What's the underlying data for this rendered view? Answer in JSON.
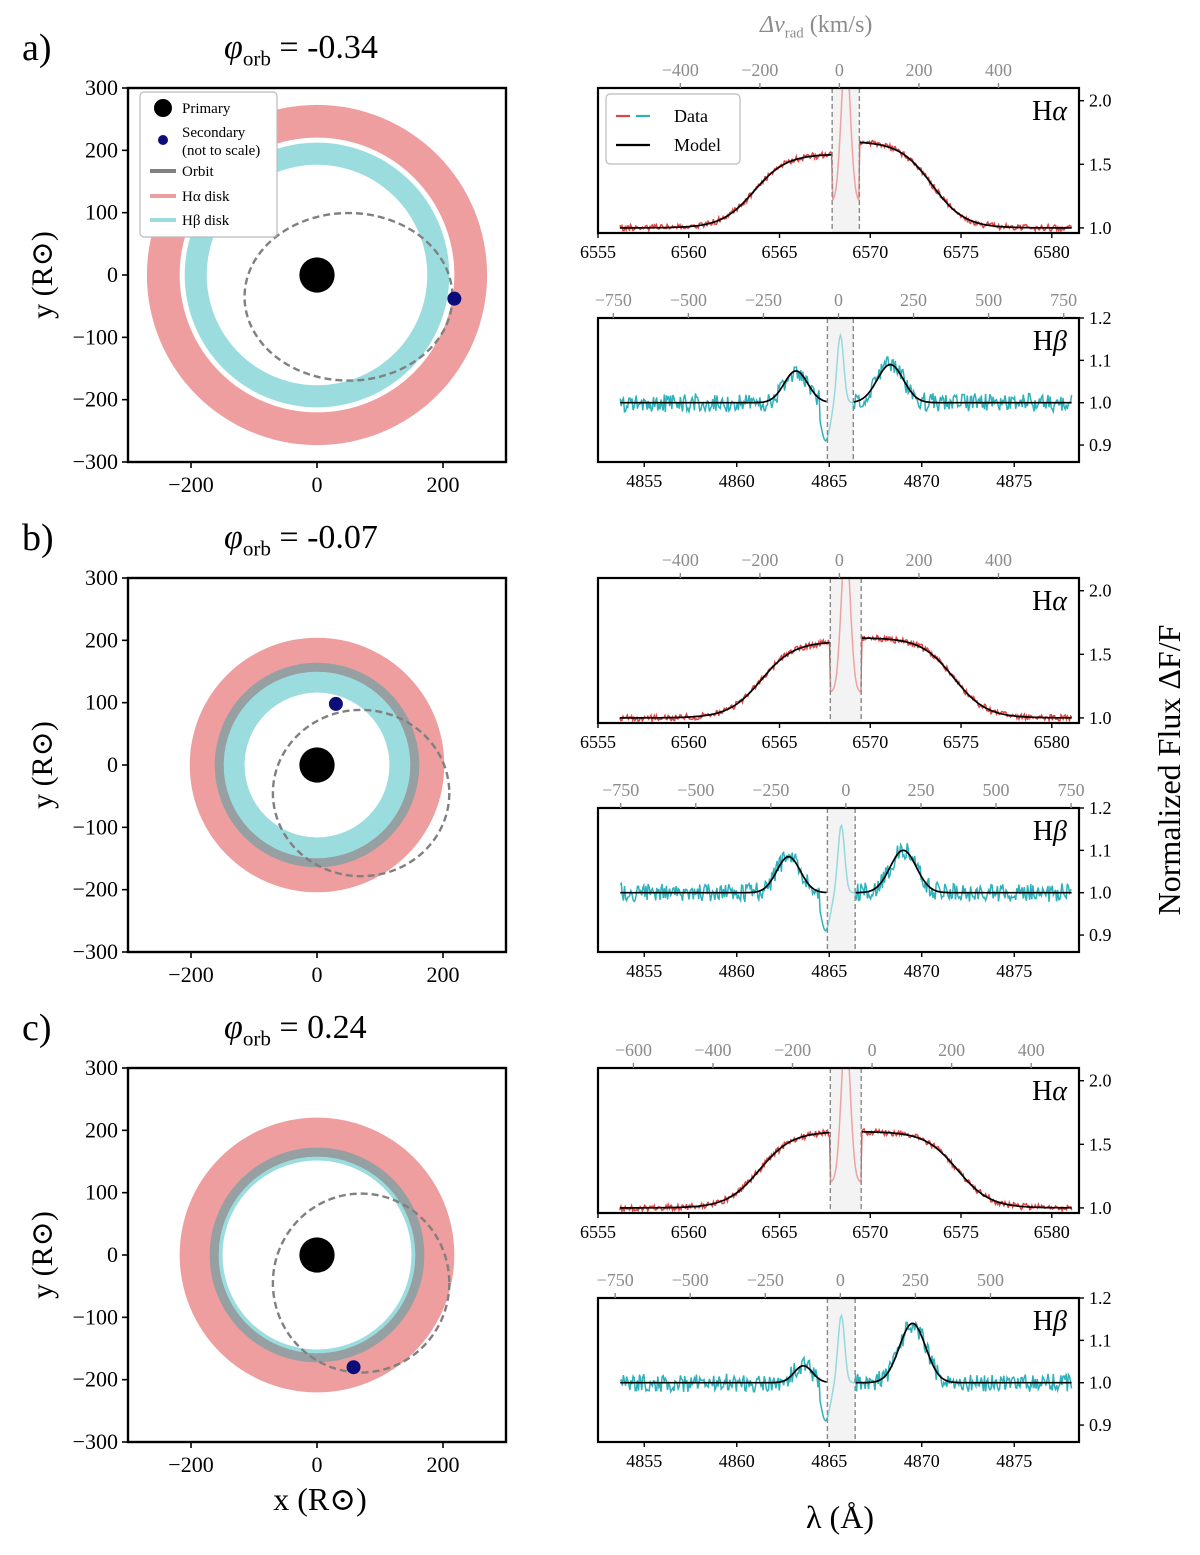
{
  "figure": {
    "colors": {
      "halpha_disk": "#ee9e9f",
      "hbeta_disk": "#9bdcdf",
      "orbit_overlap": "#969fa1",
      "ha_data": "#e04545",
      "hb_data": "#2fb1bb",
      "model": "#000000",
      "primary": "#000000",
      "secondary": "#0d0d7a",
      "orbit": "#808080",
      "masked": "#e6e6e6",
      "top_axis": "#8c8c8c"
    },
    "shared_labels": {
      "x_orbit": "x (R⊙)",
      "y_orbit": "y (R⊙)",
      "x_spectrum": "λ (Å)",
      "y_spectrum": "Normalized Flux ΔF/F",
      "top_velocity": "Δv_rad (km/s)"
    }
  },
  "chart_data": [
    {
      "panel": "a)",
      "phase_label": "φ_orb = -0.34",
      "orbit_plot": {
        "type": "scatter",
        "xlabel": "x (R⊙)",
        "ylabel": "y (R⊙)",
        "xlim": [
          -300,
          300
        ],
        "ylim": [
          -300,
          300
        ],
        "xticks": [
          -200,
          0,
          200
        ],
        "yticks": [
          -300,
          -200,
          -100,
          0,
          100,
          200,
          300
        ],
        "legend": {
          "position": "top-left",
          "items": [
            "Primary",
            "Secondary (not to scale)",
            "Orbit",
            "Hα disk",
            "Hβ disk"
          ]
        },
        "primary": {
          "x": 0,
          "y": 0,
          "radius": 28
        },
        "secondary": {
          "x": 218,
          "y": -38
        },
        "orbit_ellipse": {
          "cx": 50,
          "cy": -35,
          "rx": 165,
          "ry": 133
        },
        "halpha_disk": {
          "inner_radius": 218,
          "outer_radius": 270
        },
        "hbeta_disk": {
          "inner_radius": 175,
          "outer_radius": 210
        },
        "orbit_overlap_highlight": false
      },
      "spectra": [
        {
          "line": "Hα",
          "type": "line",
          "xlim": [
            6555,
            6581.5
          ],
          "xticks": [
            6555,
            6560,
            6565,
            6570,
            6575,
            6580
          ],
          "ylim": [
            0.96,
            2.1
          ],
          "yticks": [
            1.0,
            1.5,
            2.0
          ],
          "mask_range": [
            6567.9,
            6569.4
          ],
          "vel_center": 6568.3,
          "vel_ticks": [
            -400,
            -200,
            0,
            200,
            400
          ],
          "legend": {
            "position": "top-left",
            "items": [
              "Data",
              "Model"
            ]
          },
          "params": {
            "lc": 6565.3,
            "rc": 6571.2,
            "hl": 0.58,
            "hr": 0.68,
            "wl": 1.7,
            "wr": 2.2,
            "noise": 0.025,
            "seed": 11,
            "mid": 1.55
          }
        },
        {
          "line": "Hβ",
          "type": "line",
          "xlim": [
            4852.5,
            4878.5
          ],
          "xticks": [
            4855,
            4860,
            4865,
            4870,
            4875
          ],
          "ylim": [
            0.86,
            1.2
          ],
          "yticks": [
            0.9,
            1.0,
            1.1,
            1.2
          ],
          "mask_range": [
            4864.9,
            4866.3
          ],
          "vel_center": 4865.5,
          "vel_ticks": [
            -750,
            -500,
            -250,
            0,
            250,
            500,
            750
          ],
          "params": {
            "lc": 4863.2,
            "rc": 4868.3,
            "hl": 0.075,
            "hr": 0.09,
            "wl": 0.9,
            "wr": 1.0,
            "noise": 0.022,
            "seed": 23,
            "mid": 1.065
          }
        }
      ]
    },
    {
      "panel": "b)",
      "phase_label": "φ_orb = -0.07",
      "orbit_plot": {
        "type": "scatter",
        "xlim": [
          -300,
          300
        ],
        "ylim": [
          -300,
          300
        ],
        "xticks": [
          -200,
          0,
          200
        ],
        "yticks": [
          -300,
          -200,
          -100,
          0,
          100,
          200,
          300
        ],
        "primary": {
          "x": 0,
          "y": 0,
          "radius": 28
        },
        "secondary": {
          "x": 30,
          "y": 98
        },
        "orbit_ellipse": {
          "cx": 70,
          "cy": -45,
          "rx": 140,
          "ry": 132
        },
        "halpha_disk": {
          "inner_radius": 160,
          "outer_radius": 202
        },
        "hbeta_disk": {
          "inner_radius": 115,
          "outer_radius": 160
        },
        "orbit_overlap_highlight": true
      },
      "spectra": [
        {
          "line": "Hα",
          "type": "line",
          "xlim": [
            6555,
            6581.5
          ],
          "xticks": [
            6555,
            6560,
            6565,
            6570,
            6575,
            6580
          ],
          "ylim": [
            0.96,
            2.1
          ],
          "yticks": [
            1.0,
            1.5,
            2.0
          ],
          "mask_range": [
            6567.8,
            6569.5
          ],
          "vel_center": 6568.3,
          "vel_ticks": [
            -400,
            -200,
            0,
            200,
            400
          ],
          "params": {
            "lc": 6566.0,
            "rc": 6572.0,
            "hl": 0.6,
            "hr": 0.63,
            "wl": 2.0,
            "wr": 2.6,
            "noise": 0.025,
            "seed": 31,
            "mid": 1.6
          }
        },
        {
          "line": "Hβ",
          "type": "line",
          "xlim": [
            4852.5,
            4878.5
          ],
          "xticks": [
            4855,
            4860,
            4865,
            4870,
            4875
          ],
          "ylim": [
            0.86,
            1.2
          ],
          "yticks": [
            0.9,
            1.0,
            1.1,
            1.2
          ],
          "mask_range": [
            4864.9,
            4866.4
          ],
          "vel_center": 4865.9,
          "vel_ticks": [
            -750,
            -500,
            -250,
            0,
            250,
            500,
            750
          ],
          "params": {
            "lc": 4862.8,
            "rc": 4869.0,
            "hl": 0.085,
            "hr": 0.1,
            "wl": 0.9,
            "wr": 1.0,
            "noise": 0.022,
            "seed": 37,
            "mid": 1.065
          }
        }
      ]
    },
    {
      "panel": "c)",
      "phase_label": "φ_orb = 0.24",
      "orbit_plot": {
        "type": "scatter",
        "xlim": [
          -300,
          300
        ],
        "ylim": [
          -300,
          300
        ],
        "xticks": [
          -200,
          0,
          200
        ],
        "yticks": [
          -300,
          -200,
          -100,
          0,
          100,
          200,
          300
        ],
        "primary": {
          "x": 0,
          "y": 0,
          "radius": 28
        },
        "secondary": {
          "x": 58,
          "y": -180
        },
        "orbit_ellipse": {
          "cx": 70,
          "cy": -45,
          "rx": 140,
          "ry": 142
        },
        "halpha_disk": {
          "inner_radius": 165,
          "outer_radius": 218
        },
        "hbeta_disk": {
          "inner_radius": 150,
          "outer_radius": 168
        },
        "orbit_overlap_highlight": true
      },
      "spectra": [
        {
          "line": "Hα",
          "type": "line",
          "xlim": [
            6555,
            6581.5
          ],
          "xticks": [
            6555,
            6560,
            6565,
            6570,
            6575,
            6580
          ],
          "ylim": [
            0.96,
            2.1
          ],
          "yticks": [
            1.0,
            1.5,
            2.0
          ],
          "mask_range": [
            6567.8,
            6569.5
          ],
          "vel_center": 6570.1,
          "vel_ticks": [
            -600,
            -400,
            -200,
            0,
            200,
            400
          ],
          "params": {
            "lc": 6566.5,
            "rc": 6572.0,
            "hl": 0.6,
            "hr": 0.6,
            "wl": 2.6,
            "wr": 2.8,
            "noise": 0.025,
            "seed": 47,
            "mid": 1.6
          }
        },
        {
          "line": "Hβ",
          "type": "line",
          "xlim": [
            4852.5,
            4878.5
          ],
          "xticks": [
            4855,
            4860,
            4865,
            4870,
            4875
          ],
          "ylim": [
            0.86,
            1.2
          ],
          "yticks": [
            0.9,
            1.0,
            1.1,
            1.2
          ],
          "mask_range": [
            4864.9,
            4866.4
          ],
          "vel_center": 4865.6,
          "vel_ticks": [
            -750,
            -500,
            -250,
            0,
            250,
            500
          ],
          "params": {
            "lc": 4863.6,
            "rc": 4869.5,
            "hl": 0.04,
            "hr": 0.14,
            "wl": 0.7,
            "wr": 1.0,
            "noise": 0.022,
            "seed": 53,
            "mid": 1.07
          }
        }
      ]
    }
  ]
}
